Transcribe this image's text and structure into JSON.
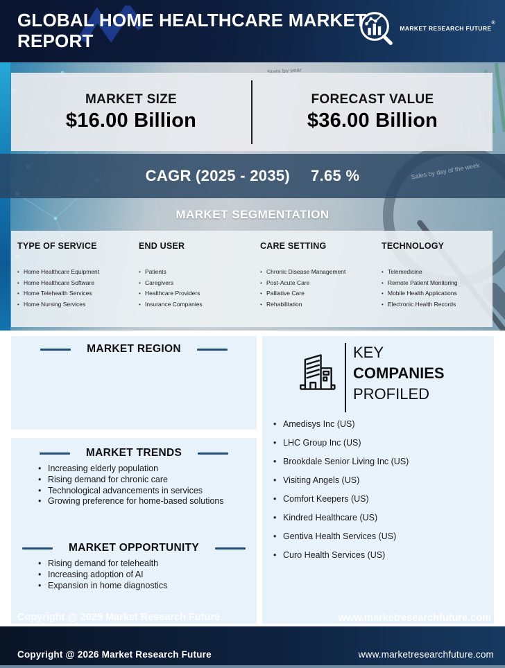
{
  "header": {
    "title_line1": "GLOBAL HOME HEALTHCARE MARKET",
    "title_line2": "REPORT",
    "logo_text": "MARKET RESEARCH FUTURE",
    "logo_reg": "®"
  },
  "hero": {
    "market_size_label": "MARKET SIZE",
    "market_size_value": "$16.00 Billion",
    "forecast_label": "FORECAST VALUE",
    "forecast_value": "$36.00 Billion",
    "cagr_label": "CAGR (2025 - 2035)",
    "cagr_value": "7.65 %",
    "photo_labels": [
      "Stats by year",
      "Sales by day of the week"
    ]
  },
  "segmentation": {
    "title": "MARKET SEGMENTATION",
    "columns": [
      {
        "heading": "TYPE OF SERVICE",
        "items": [
          "Home Healthcare Equipment",
          "Home Healthcare Software",
          "Home Telehealth Services",
          "Home Nursing Services"
        ]
      },
      {
        "heading": "END USER",
        "items": [
          "Patients",
          "Caregivers",
          "Healthcare Providers",
          "Insurance Companies"
        ]
      },
      {
        "heading": "CARE SETTING",
        "items": [
          "Chronic Disease Management",
          "Post-Acute Care",
          "Palliative Care",
          "Rehabilitation"
        ]
      },
      {
        "heading": "TECHNOLOGY",
        "items": [
          "Telemedicine",
          "Remote Patient Monitoring",
          "Mobile Health Applications",
          "Electronic Health Records"
        ]
      }
    ]
  },
  "region": {
    "title": "MARKET REGION"
  },
  "trends": {
    "title": "MARKET TRENDS",
    "items": [
      "Increasing elderly population",
      "Rising demand for chronic care",
      "Technological advancements in services",
      "Growing preference for home-based solutions"
    ]
  },
  "opportunity": {
    "title": "MARKET OPPORTUNITY",
    "items": [
      "Rising demand for telehealth",
      "Increasing adoption of AI",
      "Expansion in home diagnostics"
    ]
  },
  "companies": {
    "title_line1": "KEY",
    "title_line2": "COMPANIES",
    "title_line3": "PROFILED",
    "items": [
      "Amedisys Inc (US)",
      "LHC Group Inc (US)",
      "Brookdale Senior Living Inc (US)",
      "Visiting Angels (US)",
      "Comfort Keepers (US)",
      "Kindred Healthcare (US)",
      "Gentiva Health Services (US)",
      "Curo Health Services (US)"
    ]
  },
  "watermarks": {
    "copyright": "Copyright @ 2025 Market Research Future",
    "website": "www.marketresearchfuture.com"
  },
  "footer": {
    "copyright": "Copyright @ 2026 Market Research Future",
    "website": "www.marketresearchfuture.com"
  },
  "colors": {
    "header_navy": "#0d1d3d",
    "accent_dash": "#1f4e79",
    "panel_blue": "#e8f2fb",
    "cagr_band": "#284462",
    "footer_navy": "#0e2240",
    "logo_watermark_blue": "#1d3c8f"
  }
}
